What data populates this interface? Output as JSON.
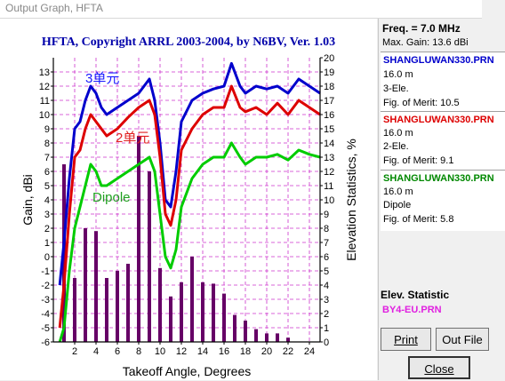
{
  "window": {
    "title": "Output Graph, HFTA"
  },
  "graph": {
    "title": "HFTA, Copyright ARRL 2003-2004, by N6BV, Ver. 1.03",
    "annotations": [
      {
        "text": "3单元",
        "color": "#1a1aff"
      },
      {
        "text": "2单元",
        "color": "#e02020"
      },
      {
        "text": "Dipole",
        "color": "#20a020"
      }
    ]
  },
  "sidebar": {
    "freq": "Freq. = 7.0 MHz",
    "max_gain": "Max. Gain: 13.6 dBi",
    "antennas": [
      {
        "file": "SHANGLUWAN330.PRN",
        "color": "#0000cc",
        "height": "16.0 m",
        "type": "3-Ele.",
        "merit": "Fig. of Merit:  10.5"
      },
      {
        "file": "SHANGLUWAN330.PRN",
        "color": "#dd0000",
        "height": "16.0 m",
        "type": "2-Ele.",
        "merit": "Fig. of Merit:  9.1"
      },
      {
        "file": "SHANGLUWAN330.PRN",
        "color": "#008800",
        "height": "16.0 m",
        "type": "Dipole",
        "merit": "Fig. of Merit:  5.8"
      }
    ],
    "elev_label": "Elev. Statistic",
    "elev_file": "BY4-EU.PRN",
    "buttons": {
      "print": "Print",
      "outfile": "Out File",
      "close": "Close"
    }
  },
  "chart_data": {
    "type": "line",
    "title": "HFTA, Copyright ARRL 2003-2004, by N6BV, Ver. 1.03",
    "xlabel": "Takeoff Angle, Degrees",
    "ylabel": "Gain, dBi",
    "y2label": "Elevation Statistics, %",
    "xlim": [
      0,
      25
    ],
    "ylim": [
      -6,
      14
    ],
    "y2lim": [
      0,
      20
    ],
    "x_ticks": [
      2,
      4,
      6,
      8,
      10,
      12,
      14,
      16,
      18,
      20,
      22,
      24
    ],
    "y_ticks": [
      -6,
      -5,
      -4,
      -3,
      -2,
      -1,
      0,
      1,
      2,
      3,
      4,
      5,
      6,
      7,
      8,
      9,
      10,
      11,
      12,
      13
    ],
    "y2_ticks": [
      0,
      1,
      2,
      3,
      4,
      5,
      6,
      7,
      8,
      9,
      10,
      11,
      12,
      13,
      14,
      15,
      16,
      17,
      18,
      19,
      20
    ],
    "grid": true,
    "series": [
      {
        "name": "3-Ele.",
        "color": "#0000cc",
        "x": [
          0.6,
          1,
          1.5,
          2,
          2.5,
          3,
          3.5,
          4,
          4.5,
          5,
          6,
          7,
          8,
          9,
          9.5,
          10,
          10.5,
          11,
          11.5,
          12,
          13,
          14,
          15,
          16,
          16.7,
          17.5,
          18,
          19,
          20,
          21,
          22,
          23,
          24,
          25
        ],
        "y": [
          -2,
          1,
          5.5,
          9,
          9.5,
          11,
          12,
          11.5,
          10.5,
          10,
          10.5,
          11,
          11.5,
          12.5,
          11,
          8,
          4,
          3.5,
          6,
          9.5,
          11,
          11.5,
          11.8,
          12,
          13.6,
          12,
          11.5,
          12,
          11.8,
          12,
          11.5,
          12.5,
          12,
          11.5
        ]
      },
      {
        "name": "2-Ele.",
        "color": "#dd0000",
        "x": [
          0.6,
          1,
          1.5,
          2,
          2.5,
          3,
          3.5,
          4,
          4.5,
          5,
          6,
          7,
          8,
          9,
          9.5,
          10,
          10.5,
          11,
          11.5,
          12,
          13,
          14,
          15,
          16,
          16.7,
          17.5,
          18,
          19,
          20,
          21,
          22,
          23,
          24,
          25
        ],
        "y": [
          -5,
          -2,
          3,
          7,
          7.5,
          9,
          10,
          9.5,
          9,
          8.5,
          9,
          9.8,
          10.5,
          11,
          10,
          7,
          3,
          2.2,
          4,
          7.5,
          9,
          10,
          10.5,
          10.5,
          12,
          10.5,
          10.2,
          10.5,
          10,
          10.8,
          10,
          11,
          10.5,
          10
        ]
      },
      {
        "name": "Dipole",
        "color": "#00cc00",
        "x": [
          0.6,
          1,
          1.5,
          2,
          2.5,
          3,
          3.5,
          4,
          4.5,
          5,
          6,
          7,
          8,
          9,
          9.5,
          10,
          10.5,
          11,
          11.5,
          12,
          13,
          14,
          15,
          16,
          16.7,
          17.5,
          18,
          19,
          20,
          21,
          22,
          23,
          24,
          25
        ],
        "y": [
          -7,
          -5,
          -1,
          2,
          3.5,
          5,
          6.5,
          6,
          5,
          5,
          5.5,
          6,
          6.5,
          7,
          6,
          3,
          0,
          -0.8,
          0.5,
          3.5,
          5.5,
          6.5,
          7,
          7,
          8,
          7,
          6.5,
          7,
          7,
          7.2,
          6.8,
          7.5,
          7.2,
          7
        ]
      }
    ],
    "bars": {
      "name": "Elevation Statistics",
      "color": "#660066",
      "x": [
        1,
        2,
        3,
        4,
        5,
        6,
        7,
        8,
        9,
        10,
        11,
        12,
        13,
        14,
        15,
        16,
        17,
        18,
        19,
        20,
        21,
        22
      ],
      "values": [
        12.5,
        4.5,
        8,
        7.8,
        4.5,
        5,
        5.5,
        14.5,
        12,
        5.2,
        3.2,
        4.2,
        6,
        4.2,
        4.1,
        3.4,
        1.9,
        1.5,
        0.9,
        0.6,
        0.6,
        0.3
      ]
    }
  }
}
